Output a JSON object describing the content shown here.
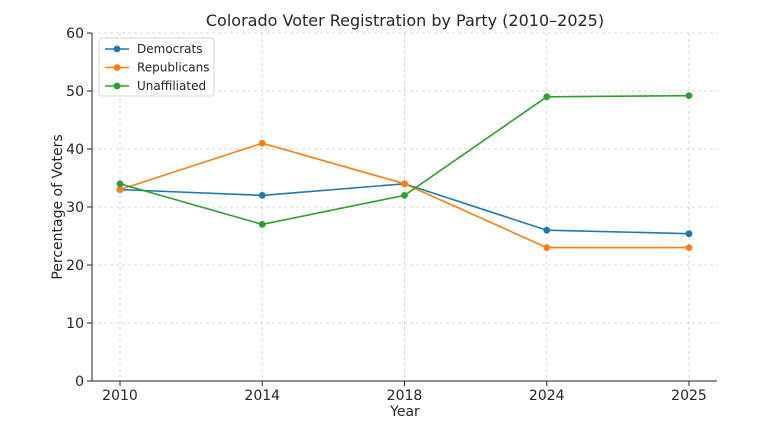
{
  "chart_data": {
    "type": "line",
    "title": "Colorado Voter Registration by Party (2010–2025)",
    "xlabel": "Year",
    "ylabel": "Percentage of Voters",
    "categories": [
      "2010",
      "2014",
      "2018",
      "2024",
      "2025"
    ],
    "yticks": [
      0,
      10,
      20,
      30,
      40,
      50,
      60
    ],
    "ylim": [
      0,
      60
    ],
    "grid": true,
    "legend_position": "upper-left",
    "series": [
      {
        "name": "Democrats",
        "color": "#1f77b4",
        "values": [
          33,
          32,
          34,
          26,
          25.4
        ]
      },
      {
        "name": "Republicans",
        "color": "#ff7f0e",
        "values": [
          33,
          41,
          34,
          23,
          23
        ]
      },
      {
        "name": "Unaffiliated",
        "color": "#2ca02c",
        "values": [
          34,
          27,
          32,
          49,
          49.2
        ]
      }
    ]
  }
}
